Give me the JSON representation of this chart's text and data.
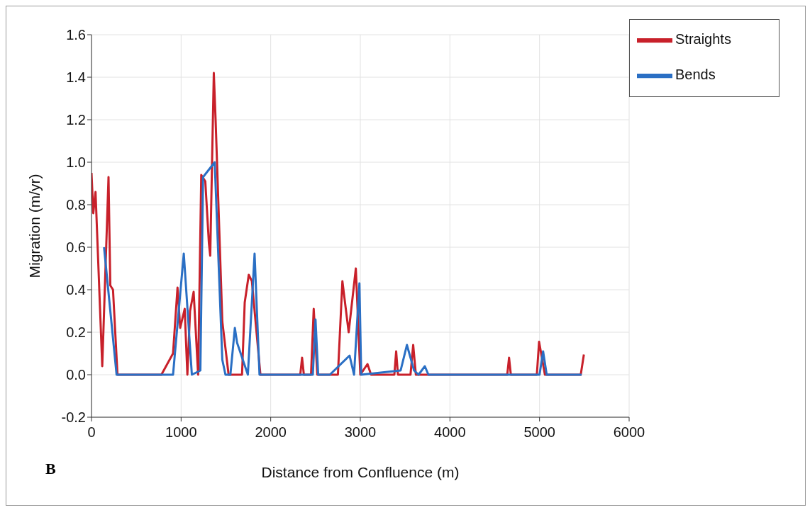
{
  "chart_data": {
    "type": "line",
    "xlabel": "Distance from Confluence (m)",
    "ylabel": "Migration (m/yr)",
    "annotations": [
      "B"
    ],
    "xlim": [
      0,
      6000
    ],
    "xticks": [
      0,
      1000,
      2000,
      3000,
      4000,
      5000,
      6000
    ],
    "ylim": [
      -0.2,
      1.6
    ],
    "yticks": [
      {
        "value": -0.2,
        "label": "-0.2"
      },
      {
        "value": 0,
        "label": "0.0"
      },
      {
        "value": 0.2,
        "label": "0.2"
      },
      {
        "value": 0.4,
        "label": "0.4"
      },
      {
        "value": 0.6,
        "label": "0.6"
      },
      {
        "value": 0.8,
        "label": "0.8"
      },
      {
        "value": 1,
        "label": "1.0"
      },
      {
        "value": 1.2,
        "label": "1.2"
      },
      {
        "value": 1.4,
        "label": "1.4"
      },
      {
        "value": 1.6,
        "label": "1.6"
      }
    ],
    "grid": true,
    "legend": "top right",
    "marker": "none",
    "line_style": "solid",
    "series": [
      {
        "name": "Straights",
        "color": "#c8202a",
        "x": [
          0,
          20,
          45,
          120,
          190,
          210,
          240,
          290,
          780,
          910,
          960,
          990,
          1040,
          1070,
          1100,
          1140,
          1190,
          1225,
          1270,
          1310,
          1325,
          1365,
          1385,
          1460,
          1530,
          1680,
          1710,
          1755,
          1790,
          1885,
          2330,
          2350,
          2370,
          2450,
          2480,
          2520,
          2750,
          2800,
          2870,
          2950,
          3000,
          3080,
          3120,
          3380,
          3400,
          3420,
          3560,
          3590,
          3620,
          4640,
          4660,
          4680,
          4970,
          4995,
          5060,
          5460,
          5495
        ],
        "values": [
          0.95,
          0.76,
          0.86,
          0.04,
          0.93,
          0.42,
          0.4,
          0,
          0,
          0.1,
          0.41,
          0.22,
          0.31,
          0,
          0.3,
          0.39,
          0,
          0.94,
          0.91,
          0.62,
          0.56,
          1.42,
          1.2,
          0.25,
          0,
          0,
          0.34,
          0.47,
          0.44,
          0,
          0,
          0.08,
          0,
          0,
          0.31,
          0,
          0,
          0.44,
          0.2,
          0.5,
          0,
          0.05,
          0,
          0,
          0.11,
          0,
          0,
          0.14,
          0,
          0,
          0.08,
          0,
          0,
          0.155,
          0,
          0,
          0.095
        ]
      },
      {
        "name": "Bends",
        "color": "#2a6fc4",
        "x": [
          140,
          280,
          910,
          1030,
          1120,
          1215,
          1245,
          1375,
          1460,
          1495,
          1550,
          1600,
          1625,
          1745,
          1820,
          1875,
          2470,
          2500,
          2530,
          2660,
          2880,
          2930,
          2990,
          3010,
          3450,
          3520,
          3600,
          3650,
          3720,
          3760,
          5000,
          5040,
          5080,
          5470
        ],
        "values": [
          0.6,
          0,
          0,
          0.57,
          0,
          0.02,
          0.93,
          1.0,
          0.07,
          0,
          0,
          0.22,
          0.15,
          0,
          0.57,
          0,
          0,
          0.26,
          0,
          0,
          0.09,
          0,
          0.43,
          0,
          0.02,
          0.14,
          0.02,
          0,
          0.04,
          0,
          0,
          0.11,
          0,
          0
        ]
      }
    ]
  }
}
